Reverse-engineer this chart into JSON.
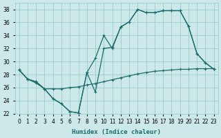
{
  "xlabel": "Humidex (Indice chaleur)",
  "bg_color": "#cce8e8",
  "grid_color": "#99cccc",
  "line_color": "#1a6b6b",
  "xlim": [
    -0.5,
    23.5
  ],
  "ylim": [
    22,
    39
  ],
  "xticks": [
    0,
    1,
    2,
    3,
    4,
    5,
    6,
    7,
    8,
    9,
    10,
    11,
    12,
    13,
    14,
    15,
    16,
    17,
    18,
    19,
    20,
    21,
    22,
    23
  ],
  "yticks": [
    22,
    24,
    26,
    28,
    30,
    32,
    34,
    36,
    38
  ],
  "line1_x": [
    0,
    1,
    2,
    3,
    4,
    5,
    6,
    7,
    8,
    9,
    10,
    11,
    12,
    13,
    14,
    15,
    16,
    17,
    18,
    19,
    20,
    21,
    22,
    23
  ],
  "line1_y": [
    28.7,
    27.3,
    26.9,
    25.8,
    24.3,
    23.5,
    22.3,
    22.1,
    28.3,
    30.5,
    34.0,
    32.0,
    35.3,
    36.1,
    38.0,
    37.5,
    37.5,
    37.8,
    37.8,
    37.8,
    35.4,
    31.2,
    29.8,
    28.8
  ],
  "line2_x": [
    0,
    1,
    2,
    3,
    4,
    5,
    6,
    7,
    8,
    9,
    10,
    11,
    12,
    13,
    14,
    15,
    16,
    17,
    18,
    19,
    20,
    21,
    22,
    23
  ],
  "line2_y": [
    28.7,
    27.3,
    26.9,
    25.8,
    24.3,
    23.5,
    22.3,
    22.1,
    28.3,
    25.3,
    32.0,
    32.2,
    35.3,
    36.1,
    38.0,
    37.5,
    37.5,
    37.8,
    37.8,
    37.8,
    35.4,
    31.2,
    29.8,
    28.8
  ],
  "line3_x": [
    0,
    1,
    2,
    3,
    4,
    5,
    6,
    7,
    8,
    9,
    10,
    11,
    12,
    13,
    14,
    15,
    16,
    17,
    18,
    19,
    20,
    21,
    22,
    23
  ],
  "line3_y": [
    28.7,
    27.3,
    26.7,
    25.8,
    25.8,
    25.8,
    26.0,
    26.1,
    26.4,
    26.6,
    26.9,
    27.2,
    27.5,
    27.8,
    28.1,
    28.3,
    28.5,
    28.6,
    28.7,
    28.8,
    28.8,
    28.9,
    28.9,
    28.9
  ],
  "tick_fontsize": 5.5,
  "xlabel_fontsize": 6.5,
  "lw": 0.9,
  "ms": 3.0
}
